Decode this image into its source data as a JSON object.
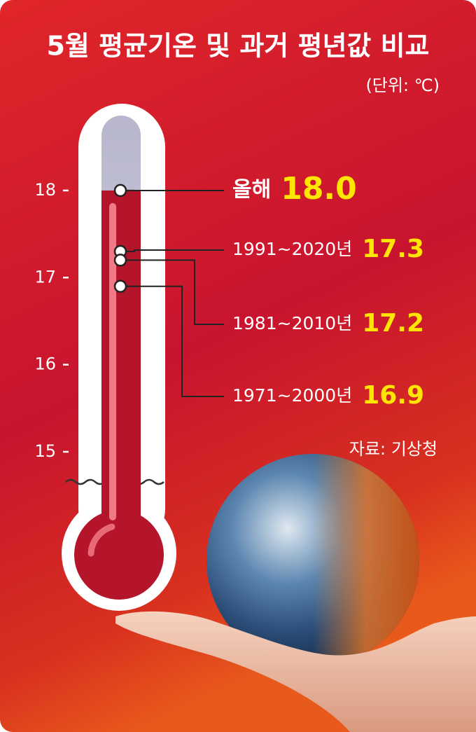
{
  "chart_data": {
    "type": "thermometer",
    "title": "5월 평균기온 및 과거 평년값 비교",
    "subtitle": "(단위: ℃)",
    "source": "자료: 기상청",
    "categories": [
      "올해",
      "1991~2020년",
      "1981~2010년",
      "1971~2000년"
    ],
    "values": [
      18.0,
      17.3,
      17.2,
      16.9
    ],
    "value_labels": [
      "18.0",
      "17.3",
      "17.2",
      "16.9"
    ],
    "ylim": [
      14.67,
      18.86
    ],
    "yticks": [
      15,
      16,
      17,
      18
    ],
    "color": "#b5152b",
    "label_color": "#ffe600"
  }
}
